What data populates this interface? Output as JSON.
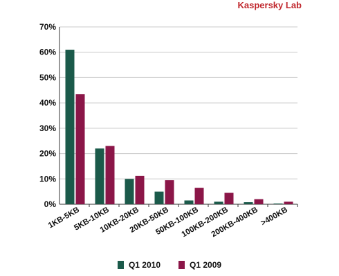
{
  "brand": "Kaspersky Lab",
  "chart_data": {
    "type": "bar",
    "categories": [
      "1KB-5KB",
      "5KB-10KB",
      "10KB-20KB",
      "20KB-50KB",
      "50KB-100KB",
      "100KB-200KB",
      "200KB-400KB",
      ">400KB"
    ],
    "series": [
      {
        "name": "Q1 2010",
        "color": "#1b5a4a",
        "values": [
          61,
          22,
          10,
          5,
          1.5,
          1,
          0.8,
          0.3
        ]
      },
      {
        "name": "Q1 2009",
        "color": "#8b1648",
        "values": [
          43.5,
          23,
          11.2,
          9.5,
          6.5,
          4.5,
          2,
          1
        ]
      }
    ],
    "ylim": [
      0,
      70
    ],
    "yticks": [
      "0%",
      "10%",
      "20%",
      "30%",
      "40%",
      "50%",
      "60%",
      "70%"
    ],
    "grid": true,
    "legend": "bottom"
  }
}
